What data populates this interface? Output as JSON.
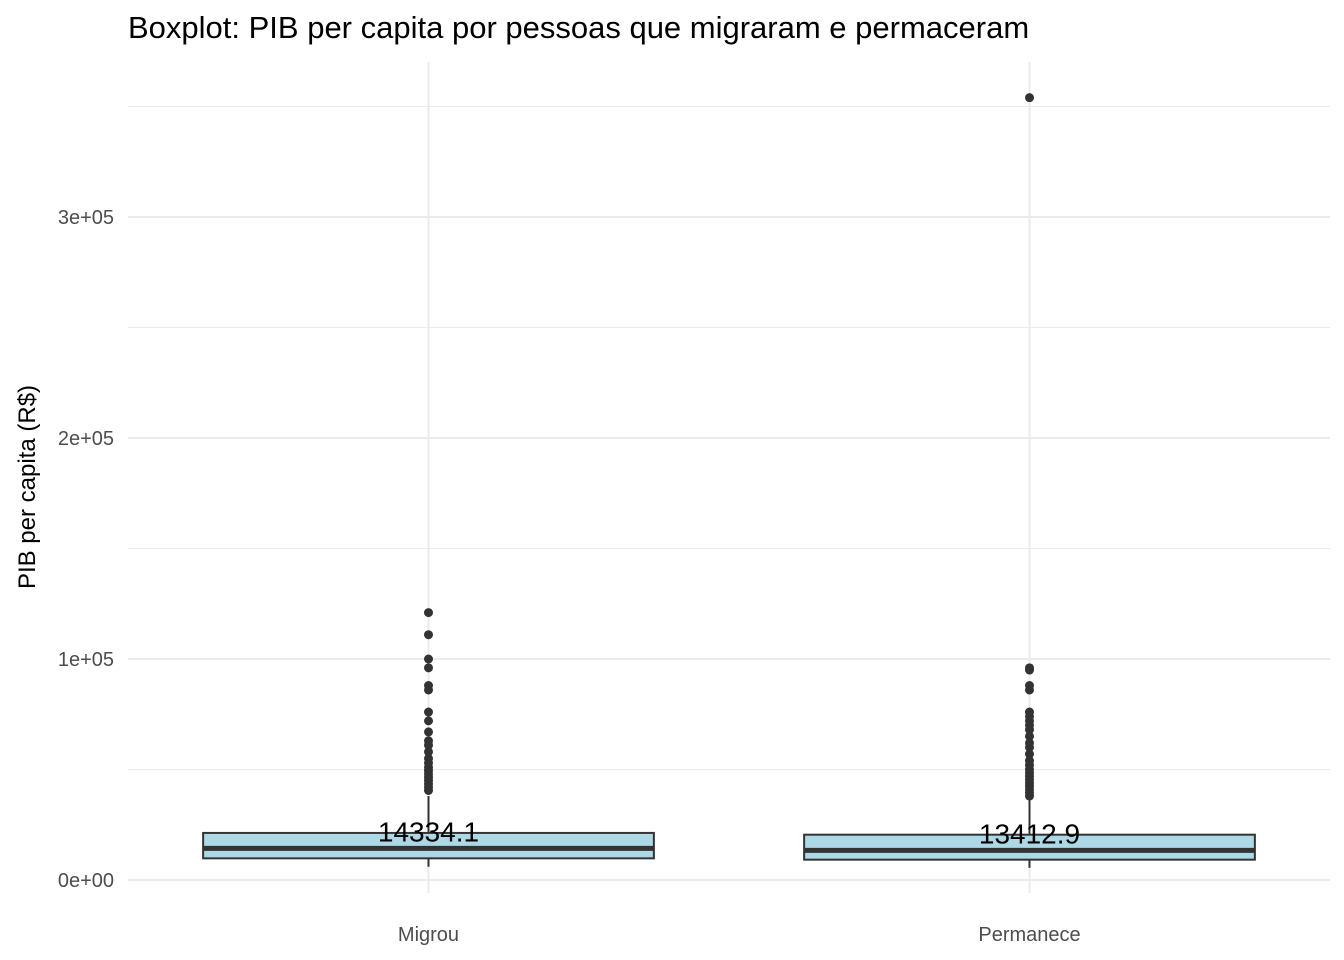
{
  "chart_data": {
    "type": "boxplot",
    "title": "Boxplot: PIB per capita por pessoas que migraram e permaceram",
    "xlabel": "",
    "ylabel": "PIB per capita (R$)",
    "ylim": [
      -6000,
      370000
    ],
    "yticks": [
      0,
      100000,
      200000,
      300000
    ],
    "ytick_labels": [
      "0e+00",
      "1e+05",
      "2e+05",
      "3e+05"
    ],
    "grid": true,
    "categories": [
      "Migrou",
      "Permanece"
    ],
    "box_fill": "#ADD8E6",
    "outline_color": "#333333",
    "boxes": [
      {
        "name": "Migrou",
        "whisker_low": 6000,
        "q1": 9800,
        "median": 14334.1,
        "q3": 21300,
        "whisker_high": 38000,
        "median_label": "14334.1",
        "outliers": [
          40500,
          42000,
          43500,
          45000,
          46500,
          48000,
          49500,
          51000,
          53000,
          55000,
          58000,
          61000,
          63000,
          67000,
          72000,
          76000,
          86000,
          88000,
          96000,
          100000,
          111000,
          121000
        ]
      },
      {
        "name": "Permanece",
        "whisker_low": 5500,
        "q1": 9200,
        "median": 13412.9,
        "q3": 20500,
        "whisker_high": 36000,
        "median_label": "13412.9",
        "outliers": [
          38000,
          39500,
          41000,
          42500,
          44000,
          45500,
          47000,
          48500,
          50000,
          52000,
          54000,
          57000,
          60000,
          62000,
          65000,
          68000,
          70000,
          72000,
          74000,
          76000,
          86000,
          88000,
          95000,
          96000,
          354000
        ]
      }
    ]
  }
}
